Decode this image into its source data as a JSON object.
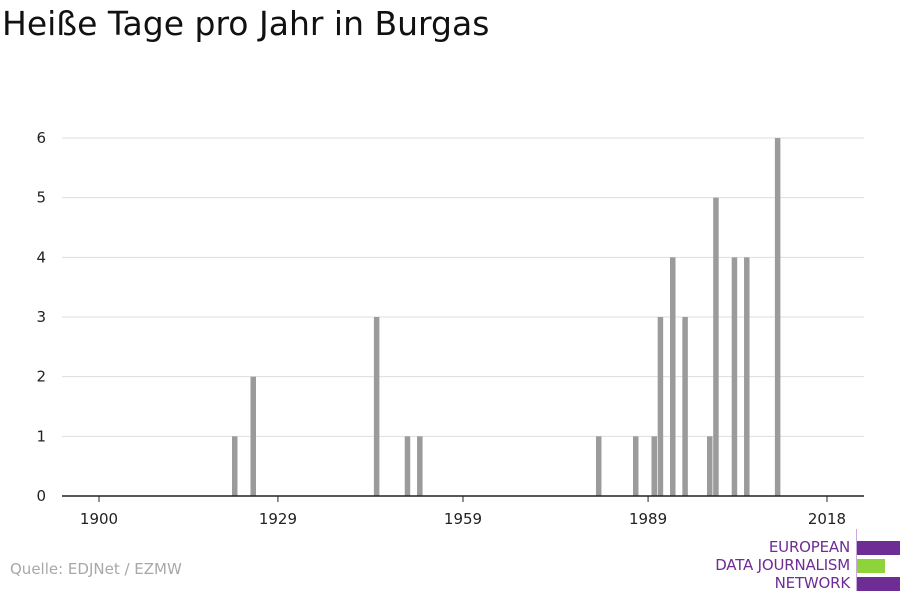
{
  "title": "Heiße Tage pro Jahr in Burgas",
  "source": "Quelle: EDJNet / EZMW",
  "logo": {
    "lines": [
      "EUROPEAN",
      "DATA JOURNALISM",
      "NETWORK"
    ],
    "colors": {
      "purple": "#6e2d95",
      "green": "#8fd33b"
    }
  },
  "colors": {
    "bar": "#9b9b9b",
    "grid": "#dedede",
    "axis": "#222222"
  },
  "chart_data": {
    "type": "bar",
    "title": "Heiße Tage pro Jahr in Burgas",
    "xlabel": "",
    "ylabel": "",
    "xlim": [
      1894,
      2024
    ],
    "ylim": [
      0,
      6
    ],
    "x_ticks": [
      1900,
      1929,
      1959,
      1989,
      2018
    ],
    "y_ticks": [
      0,
      1,
      2,
      3,
      4,
      5,
      6
    ],
    "grid": true,
    "x": [
      1922,
      1925,
      1945,
      1950,
      1952,
      1981,
      1987,
      1990,
      1991,
      1993,
      1995,
      1999,
      2000,
      2003,
      2005,
      2010
    ],
    "values": [
      1,
      2,
      3,
      1,
      1,
      1,
      1,
      1,
      3,
      4,
      3,
      1,
      5,
      4,
      4,
      6
    ]
  }
}
